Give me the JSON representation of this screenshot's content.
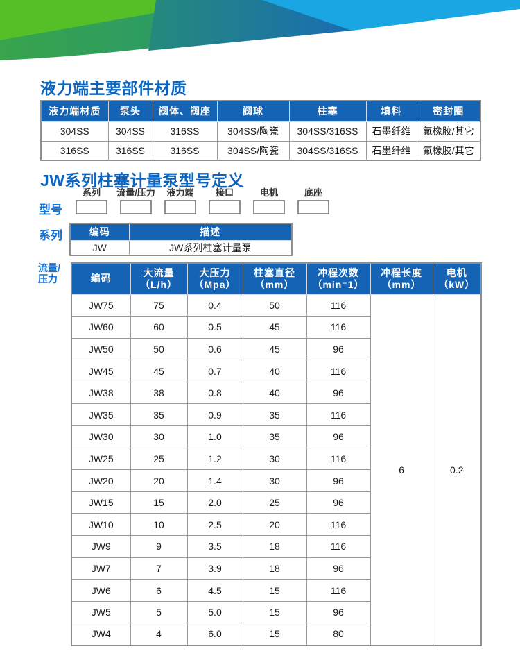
{
  "titles": {
    "materials_section": "液力端主要部件材质",
    "model_section": "JW系列柱塞计量泵型号定义"
  },
  "colors": {
    "accent_blue": "#1463b4",
    "title_blue": "#0d64be",
    "label_blue": "#1473d8",
    "banner_bright_green": "#55bf27",
    "banner_dark_green": "#2d9c60",
    "banner_teal": "#25897b",
    "banner_dark_blue": "#1a6db3",
    "banner_cyan": "#1aa5e3"
  },
  "materials_table": {
    "headers": [
      "液力端材质",
      "泵头",
      "阀体、阀座",
      "阀球",
      "柱塞",
      "填料",
      "密封圈"
    ],
    "rows": [
      [
        "304SS",
        "304SS",
        "316SS",
        "304SS/陶瓷",
        "304SS/316SS",
        "石墨纤维",
        "氟橡胶/其它"
      ],
      [
        "316SS",
        "316SS",
        "316SS",
        "304SS/陶瓷",
        "304SS/316SS",
        "石墨纤维",
        "氟橡胶/其它"
      ]
    ]
  },
  "model_definition": {
    "row_label": "型号",
    "fields": [
      "系列",
      "流量/压力",
      "液力端",
      "接口",
      "电机",
      "底座"
    ]
  },
  "series_section": {
    "label": "系列",
    "headers": [
      "编码",
      "描述"
    ],
    "rows": [
      [
        "JW",
        "JW系列柱塞计量泵"
      ]
    ]
  },
  "flow_section": {
    "label": "流量/\n压力",
    "headers": [
      "编码",
      "大流量\n（L/h）",
      "大压力\n（Mpa）",
      "柱塞直径\n（mm）",
      "冲程次数\n（min⁻1）",
      "冲程长度\n（mm）",
      "电机\n（kW）"
    ],
    "rows": [
      [
        "JW75",
        "75",
        "0.4",
        "50",
        "116"
      ],
      [
        "JW60",
        "60",
        "0.5",
        "45",
        "116"
      ],
      [
        "JW50",
        "50",
        "0.6",
        "45",
        "96"
      ],
      [
        "JW45",
        "45",
        "0.7",
        "40",
        "116"
      ],
      [
        "JW38",
        "38",
        "0.8",
        "40",
        "96"
      ],
      [
        "JW35",
        "35",
        "0.9",
        "35",
        "116"
      ],
      [
        "JW30",
        "30",
        "1.0",
        "35",
        "96"
      ],
      [
        "JW25",
        "25",
        "1.2",
        "30",
        "116"
      ],
      [
        "JW20",
        "20",
        "1.4",
        "30",
        "96"
      ],
      [
        "JW15",
        "15",
        "2.0",
        "25",
        "96"
      ],
      [
        "JW10",
        "10",
        "2.5",
        "20",
        "116"
      ],
      [
        "JW9",
        "9",
        "3.5",
        "18",
        "116"
      ],
      [
        "JW7",
        "7",
        "3.9",
        "18",
        "96"
      ],
      [
        "JW6",
        "6",
        "4.5",
        "15",
        "116"
      ],
      [
        "JW5",
        "5",
        "5.0",
        "15",
        "96"
      ],
      [
        "JW4",
        "4",
        "6.0",
        "15",
        "80"
      ]
    ],
    "merged_values": [
      "6",
      "0.2"
    ]
  }
}
